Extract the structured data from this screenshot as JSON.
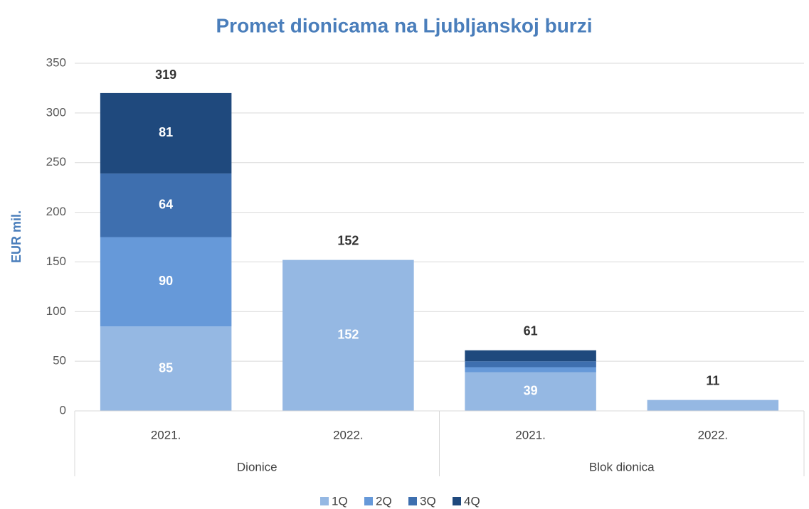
{
  "chart_data": {
    "type": "stacked_bar",
    "title": "Promet dionicama na Ljubljanskoj burzi",
    "y_label": "EUR mil.",
    "groups": [
      {
        "name": "Dionice",
        "span": 2
      },
      {
        "name": "Blok dionica",
        "span": 2
      }
    ],
    "categories": [
      "2021.",
      "2022.",
      "2021.",
      "2022."
    ],
    "series": [
      {
        "name": "1Q",
        "color": "#95b8e3",
        "values": [
          85,
          152,
          39,
          11
        ]
      },
      {
        "name": "2Q",
        "color": "#6699d9",
        "values": [
          90,
          null,
          5,
          null
        ]
      },
      {
        "name": "3Q",
        "color": "#3e6faf",
        "values": [
          64,
          null,
          6,
          null
        ]
      },
      {
        "name": "4Q",
        "color": "#1f497d",
        "values": [
          81,
          null,
          11,
          null
        ]
      }
    ],
    "totals": [
      319,
      152,
      61,
      11
    ],
    "ylim": [
      0,
      350
    ],
    "yticks": [
      0,
      50,
      100,
      150,
      200,
      250,
      300,
      350
    ],
    "grid": true,
    "legend": "bottom"
  }
}
